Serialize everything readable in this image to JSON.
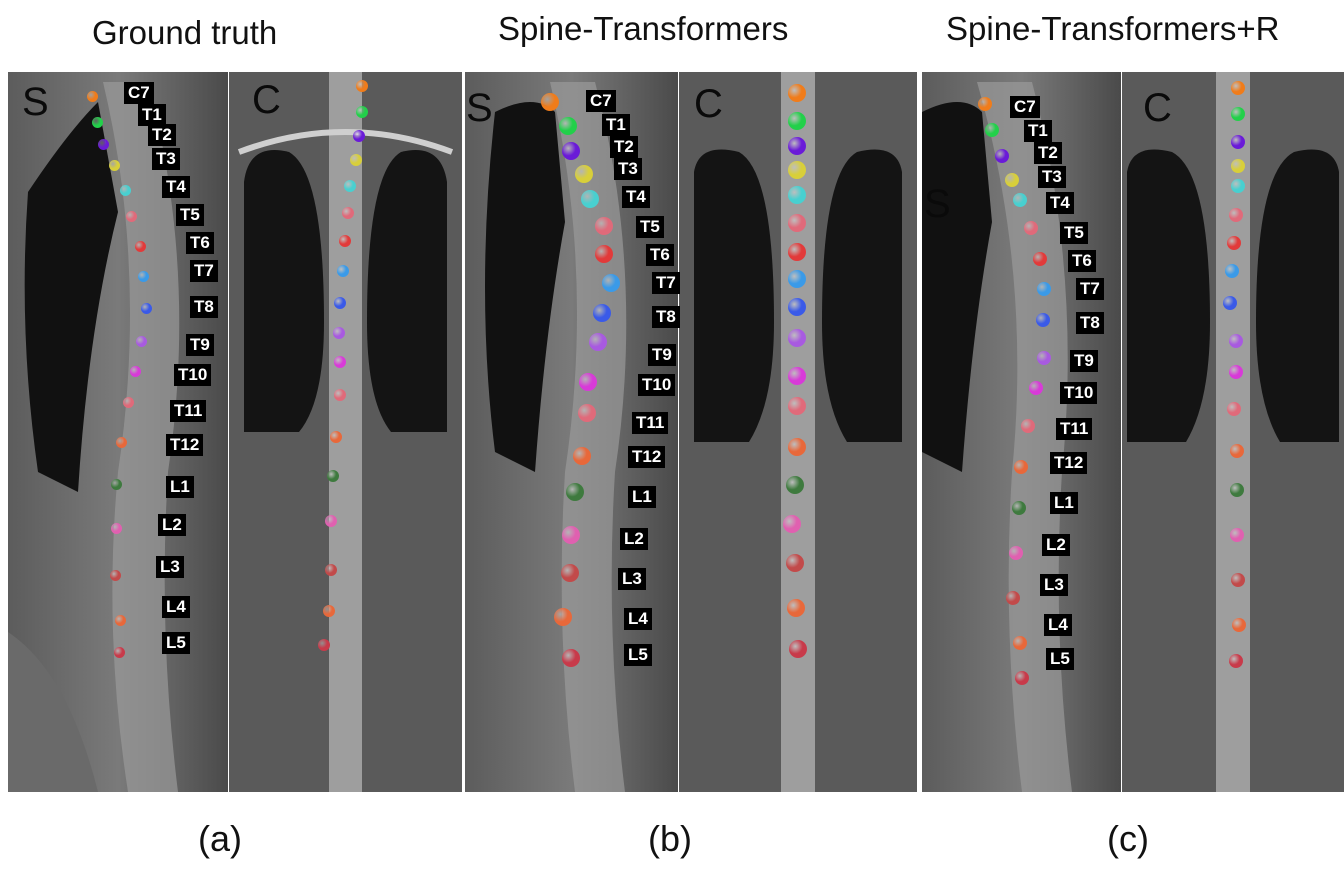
{
  "titles": {
    "a": "Ground truth",
    "b": "Spine-Transformers",
    "c": "Spine-Transformers+R"
  },
  "captions": {
    "a": "(a)",
    "b": "(b)",
    "c": "(c)"
  },
  "view_labels": {
    "sagittal": "S",
    "coronal": "C"
  },
  "vertebrae": [
    "C7",
    "T1",
    "T2",
    "T3",
    "T4",
    "T5",
    "T6",
    "T7",
    "T8",
    "T9",
    "T10",
    "T11",
    "T12",
    "L1",
    "L2",
    "L3",
    "L4",
    "L5"
  ],
  "colors": [
    "#f07c1a",
    "#22d04a",
    "#6a1ad8",
    "#d8cf3a",
    "#48d0d0",
    "#e06a7a",
    "#e23a3a",
    "#3a9ae8",
    "#3a5ae8",
    "#a85ae0",
    "#d83ad8",
    "#e06a7a",
    "#e8683a",
    "#3e7a3e",
    "#e060b0",
    "#c24a4a",
    "#e8683a",
    "#c83a4a"
  ]
}
